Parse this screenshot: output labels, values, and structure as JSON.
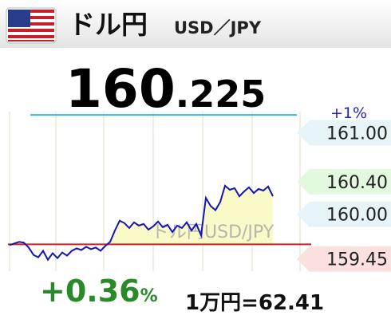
{
  "header": {
    "title": "ドル円",
    "pair": "USD／JPY"
  },
  "price": {
    "integer": "160",
    "decimal": ".225"
  },
  "chart_data": {
    "type": "line",
    "watermark": "ドル円USD/JPY",
    "series": [
      {
        "color": "#1414b8",
        "values": [
          159.62,
          159.64,
          159.66,
          159.65,
          159.59,
          159.5,
          159.47,
          159.55,
          159.44,
          159.52,
          159.46,
          159.53,
          159.49,
          159.55,
          159.58,
          159.56,
          159.6,
          159.57,
          159.59,
          159.55,
          159.61,
          159.66,
          159.8,
          159.92,
          159.89,
          159.83,
          159.9,
          159.86,
          159.88,
          159.81,
          159.85,
          159.91,
          159.84,
          159.87,
          159.78,
          159.86,
          159.83,
          159.9,
          159.8,
          159.88,
          159.74,
          160.2,
          160.1,
          160.05,
          160.15,
          160.35,
          160.3,
          160.32,
          160.22,
          160.28,
          160.33,
          160.26,
          160.31,
          160.29,
          160.34,
          160.22
        ]
      }
    ],
    "fill_color": "#fafac8",
    "ylim": [
      159.3,
      161.26
    ],
    "yticks": [
      {
        "value": 161,
        "label": "161.00"
      },
      {
        "value": 160.4,
        "label": "160.40"
      },
      {
        "value": 160,
        "label": "160.00"
      },
      159.45
    ],
    "ytick_colors": [
      "#e6f4f8",
      "#e2f8df",
      "#e6f4f8",
      "#fbe0e0"
    ],
    "base_line": {
      "value": 159.63,
      "color": "#e01818"
    },
    "upper_line": {
      "value": 161.22,
      "label": "+1%",
      "color": "#33bbee",
      "label_color": "#2020c0"
    }
  },
  "change": {
    "value": "+0.36",
    "unit": "%",
    "color": "#2a8a2a"
  },
  "conversion": "1万円=62.41"
}
